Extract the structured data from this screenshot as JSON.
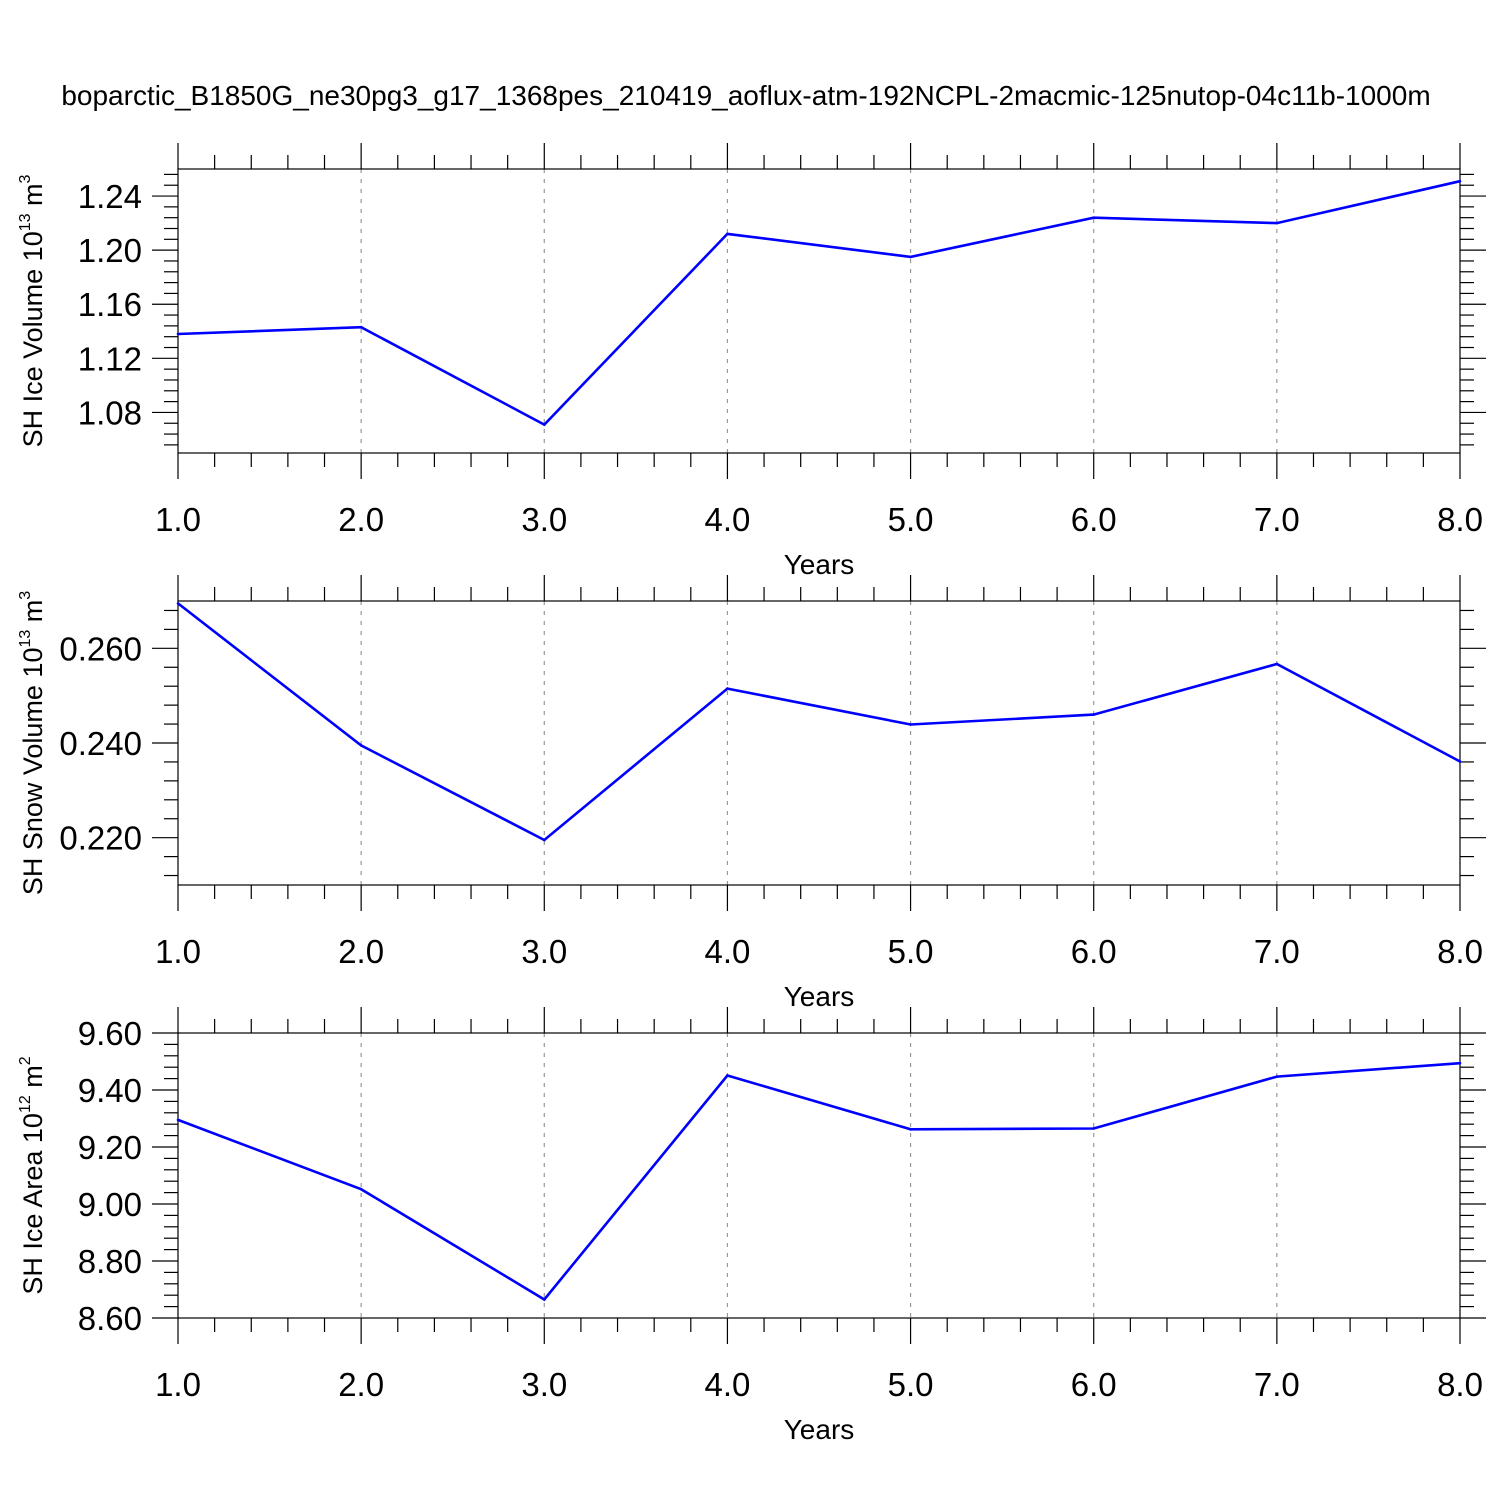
{
  "title": "boparctic_B1850G_ne30pg3_g17_1368pes_210419_aoflux-atm-192NCPL-2macmic-125nutop-04c11b-1000m",
  "colors": {
    "series": "#0000ff",
    "axis": "#000000",
    "grid": "#999999"
  },
  "chart_data": [
    {
      "type": "line",
      "ylabel": {
        "base": "SH Ice Volume 10",
        "exp": "13",
        "unit": " m",
        "unit_exp": "3"
      },
      "xlabel": "Years",
      "xlim": [
        1.0,
        8.0
      ],
      "ylim": [
        1.05,
        1.26
      ],
      "x": [
        1,
        2,
        3,
        4,
        5,
        6,
        7,
        8
      ],
      "series": [
        {
          "values": [
            1.138,
            1.143,
            1.071,
            1.212,
            1.195,
            1.224,
            1.22,
            1.251
          ]
        }
      ],
      "x_ticks": [
        "1.0",
        "2.0",
        "3.0",
        "4.0",
        "5.0",
        "6.0",
        "7.0",
        "8.0"
      ],
      "y_ticks": [
        1.08,
        1.12,
        1.16,
        1.2,
        1.24
      ],
      "y_tick_labels": [
        "1.08",
        "1.12",
        "1.16",
        "1.20",
        "1.24"
      ],
      "grid": "vertical dashed at x ticks"
    },
    {
      "type": "line",
      "ylabel": {
        "base": "SH Snow Volume 10",
        "exp": "13",
        "unit": " m",
        "unit_exp": "3"
      },
      "xlabel": "Years",
      "xlim": [
        1.0,
        8.0
      ],
      "ylim": [
        0.21,
        0.27
      ],
      "x": [
        1,
        2,
        3,
        4,
        5,
        6,
        7,
        8
      ],
      "series": [
        {
          "values": [
            0.2695,
            0.2395,
            0.2195,
            0.2515,
            0.2439,
            0.246,
            0.2567,
            0.2361
          ]
        }
      ],
      "x_ticks": [
        "1.0",
        "2.0",
        "3.0",
        "4.0",
        "5.0",
        "6.0",
        "7.0",
        "8.0"
      ],
      "y_ticks": [
        0.22,
        0.24,
        0.26
      ],
      "y_tick_labels": [
        "0.220",
        "0.240",
        "0.260"
      ],
      "grid": "vertical dashed at x ticks"
    },
    {
      "type": "line",
      "ylabel": {
        "base": "SH Ice Area 10",
        "exp": "12",
        "unit": " m",
        "unit_exp": "2"
      },
      "xlabel": "Years",
      "xlim": [
        1.0,
        8.0
      ],
      "ylim": [
        8.6,
        9.6
      ],
      "x": [
        1,
        2,
        3,
        4,
        5,
        6,
        7,
        8
      ],
      "series": [
        {
          "values": [
            9.295,
            9.052,
            8.665,
            9.451,
            9.262,
            9.265,
            9.447,
            9.494
          ]
        }
      ],
      "x_ticks": [
        "1.0",
        "2.0",
        "3.0",
        "4.0",
        "5.0",
        "6.0",
        "7.0",
        "8.0"
      ],
      "y_ticks": [
        8.6,
        8.8,
        9.0,
        9.2,
        9.4,
        9.6
      ],
      "y_tick_labels": [
        "8.60",
        "8.80",
        "9.00",
        "9.20",
        "9.40",
        "9.60"
      ],
      "grid": "vertical dashed at x ticks"
    }
  ]
}
